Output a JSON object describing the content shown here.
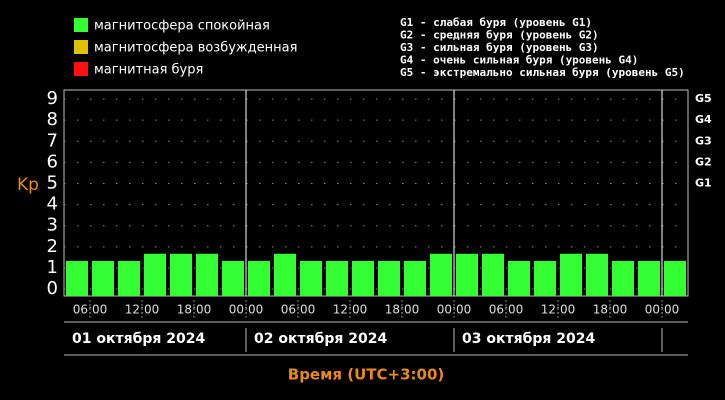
{
  "chart_data": {
    "type": "bar",
    "legend": [
      {
        "name": "магнитосфера спокойная",
        "color": "#33ff33"
      },
      {
        "name": "магнитосфера возбужденная",
        "color": "#e0c000"
      },
      {
        "name": "магнитная буря",
        "color": "#ff1010"
      }
    ],
    "storm_legend": [
      "G1 - слабая буря (уровень G1)",
      "G2 - средняя буря (уровень G2)",
      "G3 - сильная буря (уровень G3)",
      "G4 - очень сильная буря (уровень G4)",
      "G5 - экстремально сильная буря (уровень G5)"
    ],
    "y_label": "Kp",
    "x_label": "Время (UTC+3:00)",
    "ylim": [
      -0.33,
      9.43
    ],
    "yticks": [
      0,
      1,
      2,
      3,
      4,
      5,
      6,
      7,
      8,
      9
    ],
    "y2ticks": [
      {
        "value": 5,
        "label": "G1"
      },
      {
        "value": 6,
        "label": "G2"
      },
      {
        "value": 7,
        "label": "G3"
      },
      {
        "value": 8,
        "label": "G4"
      },
      {
        "value": 9,
        "label": "G5"
      }
    ],
    "xlim": [
      3,
      75
    ],
    "xticks": [
      {
        "value": 6,
        "label": "06:00"
      },
      {
        "value": 12,
        "label": "12:00"
      },
      {
        "value": 18,
        "label": "18:00"
      },
      {
        "value": 24,
        "label": "00:00"
      },
      {
        "value": 30,
        "label": "06:00"
      },
      {
        "value": 36,
        "label": "12:00"
      },
      {
        "value": 42,
        "label": "18:00"
      },
      {
        "value": 48,
        "label": "00:00"
      },
      {
        "value": 54,
        "label": "06:00"
      },
      {
        "value": 60,
        "label": "12:00"
      },
      {
        "value": 66,
        "label": "18:00"
      },
      {
        "value": 72,
        "label": "00:00"
      }
    ],
    "days": [
      {
        "value": 0,
        "label": "01 октября 2024"
      },
      {
        "value": 24,
        "label": "02 октября 2024"
      },
      {
        "value": 48,
        "label": "03 октября 2024"
      }
    ],
    "day_lines": [
      24,
      48,
      72
    ],
    "grid": true,
    "color": "#33ff33",
    "x": [
      4.5,
      7.5,
      10.5,
      13.5,
      16.5,
      19.5,
      22.5,
      25.5,
      28.5,
      31.5,
      34.5,
      37.5,
      40.5,
      43.5,
      46.5,
      49.5,
      52.5,
      55.5,
      58.5,
      61.5,
      64.5,
      67.5,
      70.5,
      73.5
    ],
    "values": [
      1.33,
      1.33,
      1.33,
      1.67,
      1.67,
      1.67,
      1.33,
      1.33,
      1.67,
      1.33,
      1.33,
      1.33,
      1.33,
      1.33,
      1.67,
      1.67,
      1.67,
      1.33,
      1.33,
      1.67,
      1.67,
      1.33,
      1.33,
      1.33
    ]
  }
}
